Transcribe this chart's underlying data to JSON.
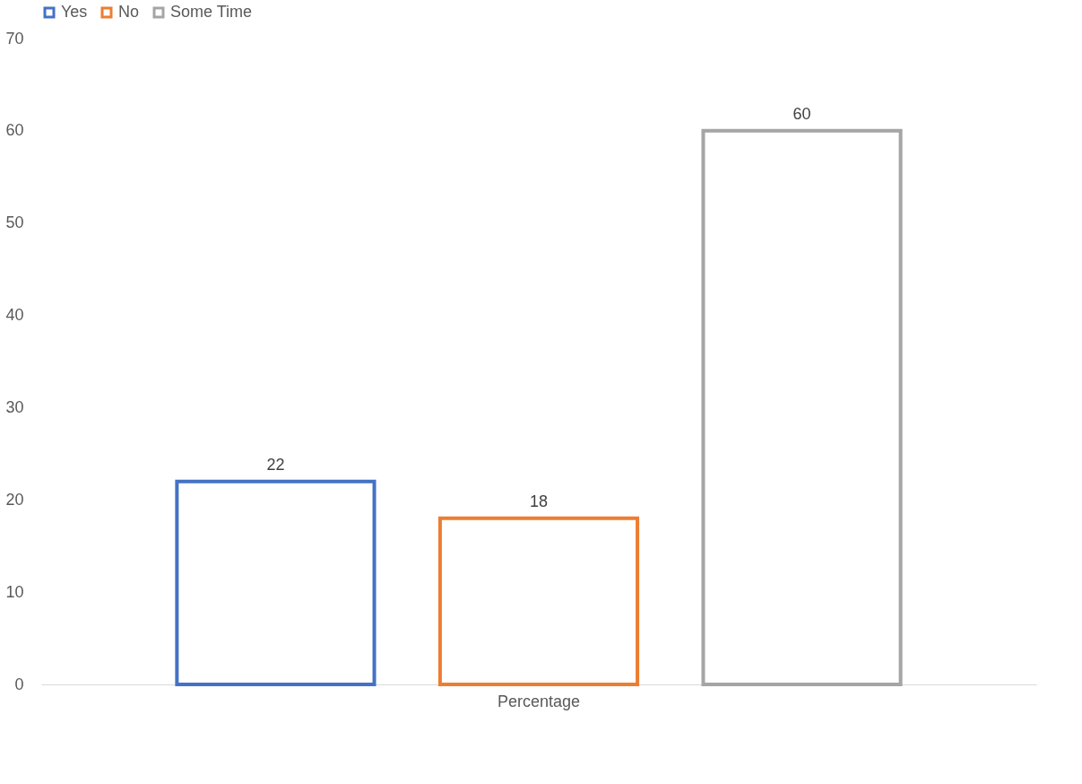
{
  "chart_data": {
    "type": "bar",
    "categories": [
      "Percentage"
    ],
    "series": [
      {
        "name": "Yes",
        "color": "#4472c4",
        "values": [
          22
        ]
      },
      {
        "name": "No",
        "color": "#ed7d31",
        "values": [
          18
        ]
      },
      {
        "name": "Some Time",
        "color": "#a5a5a5",
        "values": [
          60
        ]
      }
    ],
    "ylim": [
      0,
      70
    ],
    "yticks": [
      0,
      10,
      20,
      30,
      40,
      50,
      60,
      70
    ],
    "data_labels": true,
    "grid": false,
    "legend": "top"
  }
}
